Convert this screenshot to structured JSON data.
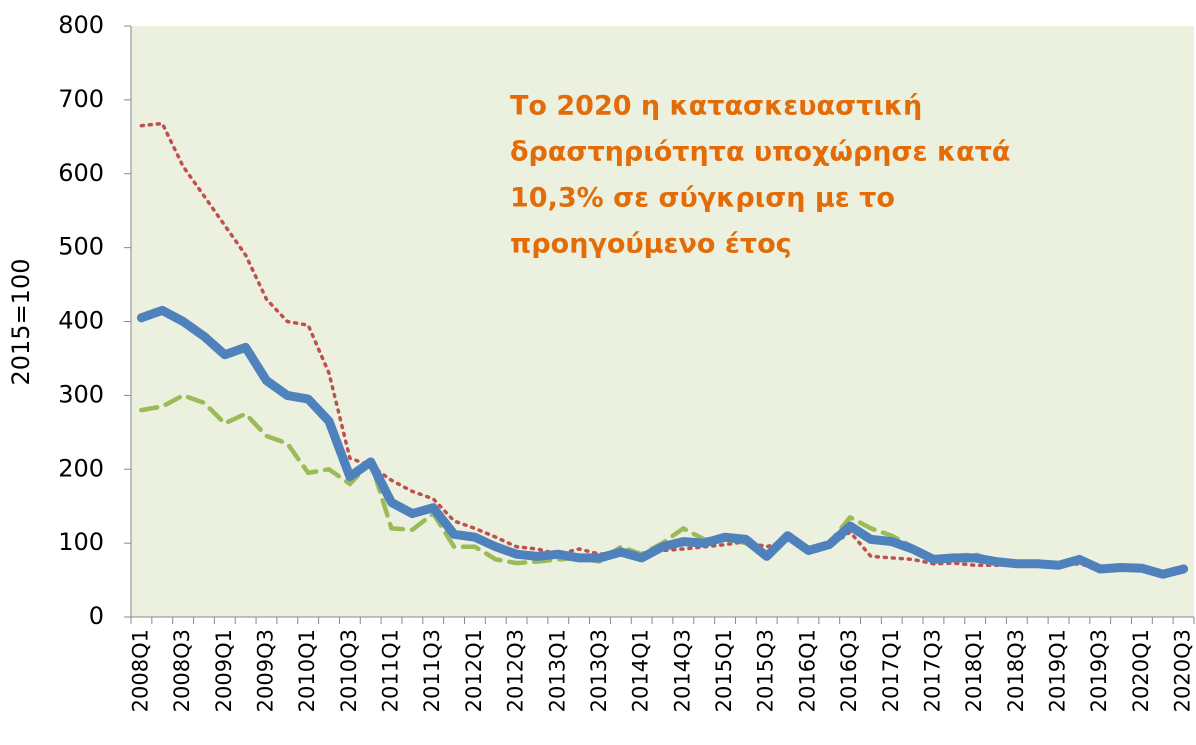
{
  "chart_data": {
    "type": "line",
    "y_label": "2015=100",
    "annotation": [
      "Το 2020 η κατασκευαστική",
      "δραστηριότητα υποχώρησε κατά",
      "10,3% σε σύγκριση με το",
      "προηγούμενο έτος"
    ],
    "categories": [
      "2008Q1",
      null,
      "2008Q3",
      null,
      "2009Q1",
      null,
      "2009Q3",
      null,
      "2010Q1",
      null,
      "2010Q3",
      null,
      "2011Q1",
      null,
      "2011Q3",
      null,
      "2012Q1",
      null,
      "2012Q3",
      null,
      "2013Q1",
      null,
      "2013Q3",
      null,
      "2014Q1",
      null,
      "2014Q3",
      null,
      "2015Q1",
      null,
      "2015Q3",
      null,
      "2016Q1",
      null,
      "2016Q3",
      null,
      "2017Q1",
      null,
      "2017Q3",
      null,
      "2018Q1",
      null,
      "2018Q3",
      null,
      "2019Q1",
      null,
      "2019Q3",
      null,
      "2020Q1",
      null,
      "2020Q3"
    ],
    "series": [
      {
        "color": "#c0504d",
        "style": "dotted",
        "width": 3.5,
        "values": [
          665,
          668,
          610,
          570,
          530,
          490,
          430,
          400,
          395,
          330,
          215,
          205,
          185,
          170,
          160,
          130,
          120,
          108,
          95,
          92,
          85,
          92,
          85,
          88,
          85,
          90,
          92,
          95,
          98,
          102,
          95,
          105,
          92,
          95,
          115,
          82,
          80,
          78,
          72,
          73,
          70,
          70,
          70,
          72,
          70,
          72,
          65,
          67,
          66,
          60,
          65
        ]
      },
      {
        "color": "#9bbb59",
        "style": "dashed",
        "width": 4.5,
        "values": [
          280,
          285,
          300,
          290,
          262,
          275,
          245,
          235,
          195,
          200,
          180,
          210,
          120,
          118,
          140,
          95,
          95,
          78,
          73,
          75,
          78,
          80,
          75,
          95,
          85,
          100,
          120,
          105,
          105,
          100,
          80,
          108,
          90,
          100,
          135,
          120,
          110,
          95,
          80,
          82,
          85,
          75,
          72,
          73,
          72,
          75,
          65,
          68,
          66,
          60,
          65
        ]
      },
      {
        "color": "#4f81bd",
        "style": "solid",
        "width": 9,
        "values": [
          405,
          415,
          400,
          380,
          355,
          365,
          320,
          300,
          295,
          265,
          190,
          210,
          155,
          140,
          148,
          112,
          108,
          95,
          85,
          82,
          85,
          80,
          80,
          88,
          80,
          95,
          102,
          100,
          108,
          105,
          82,
          110,
          90,
          98,
          123,
          105,
          102,
          92,
          78,
          80,
          80,
          75,
          72,
          72,
          70,
          78,
          65,
          67,
          66,
          58,
          65
        ]
      }
    ],
    "ylim": [
      0,
      800
    ],
    "yticks": [
      0,
      100,
      200,
      300,
      400,
      500,
      600,
      700,
      800
    ],
    "plot_background": "#ebf1de"
  }
}
